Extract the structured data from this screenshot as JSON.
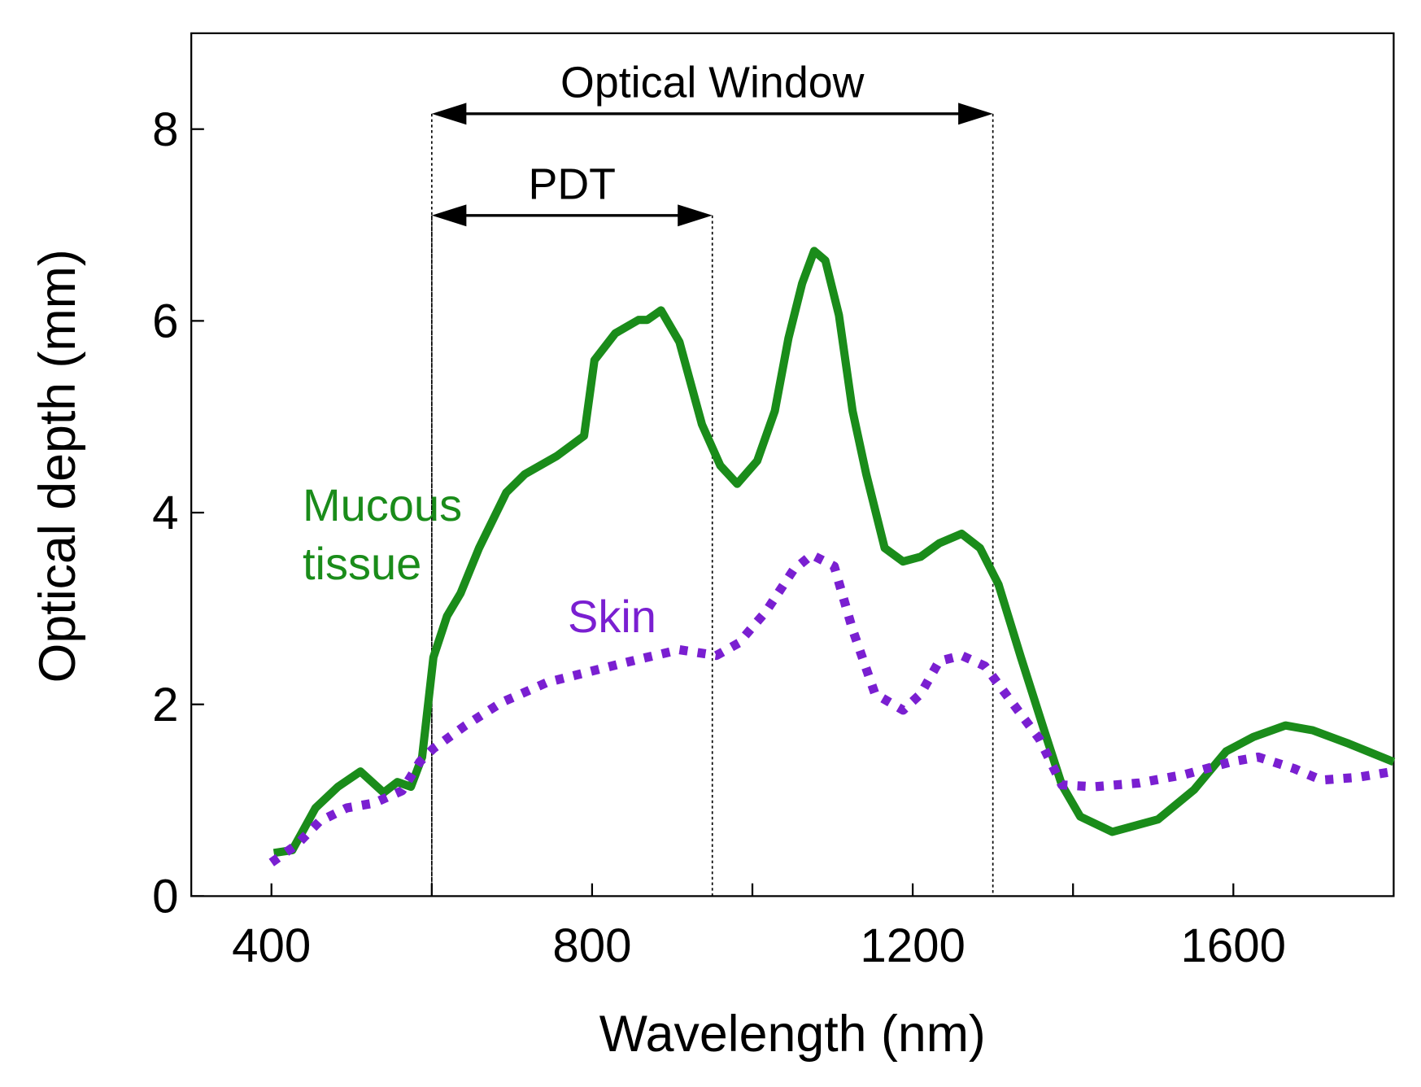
{
  "chart_data": {
    "type": "line",
    "x_label": "Wavelength (nm)",
    "y_label": "Optical depth (mm)",
    "xlim": [
      300,
      1800
    ],
    "ylim": [
      0,
      9
    ],
    "xticks": [
      400,
      800,
      1200,
      1600
    ],
    "xminor_ticks": [
      600,
      1000,
      1400
    ],
    "yticks": [
      0,
      2,
      4,
      6,
      8
    ],
    "annotations": [
      {
        "text": "Optical Window",
        "x_start": 600,
        "x_end": 1300,
        "y": 8.16
      },
      {
        "text": "PDT",
        "x_start": 600,
        "x_end": 950,
        "y": 7.1
      }
    ],
    "series": [
      {
        "name": "Mucous tissue",
        "color": "#1a8c1a",
        "style": "solid",
        "x": [
          403,
          426,
          455,
          483,
          511,
          540,
          557,
          574,
          588,
          602,
          619,
          636,
          659,
          693,
          716,
          756,
          790,
          803,
          829,
          858,
          869,
          886,
          909,
          937,
          960,
          981,
          1006,
          1028,
          1045,
          1062,
          1077,
          1091,
          1108,
          1125,
          1142,
          1165,
          1188,
          1210,
          1233,
          1261,
          1284,
          1307,
          1335,
          1364,
          1386,
          1409,
          1449,
          1506,
          1551,
          1591,
          1625,
          1665,
          1699,
          1744,
          1800
        ],
        "values": [
          0.45,
          0.48,
          0.92,
          1.14,
          1.3,
          1.08,
          1.19,
          1.14,
          1.45,
          2.49,
          2.92,
          3.16,
          3.63,
          4.21,
          4.4,
          4.59,
          4.8,
          5.59,
          5.87,
          6.01,
          6.01,
          6.11,
          5.78,
          4.92,
          4.49,
          4.3,
          4.54,
          5.06,
          5.82,
          6.39,
          6.73,
          6.63,
          6.06,
          5.06,
          4.4,
          3.63,
          3.49,
          3.54,
          3.68,
          3.78,
          3.63,
          3.25,
          2.49,
          1.73,
          1.16,
          0.83,
          0.67,
          0.8,
          1.11,
          1.51,
          1.66,
          1.78,
          1.73,
          1.59,
          1.4
        ]
      },
      {
        "name": "Skin",
        "color": "#7a1fd1",
        "style": "dotted",
        "x": [
          400,
          432,
          460,
          494,
          528,
          563,
          585,
          602,
          642,
          687,
          744,
          801,
          858,
          909,
          955,
          983,
          1017,
          1051,
          1074,
          1102,
          1125,
          1153,
          1188,
          1210,
          1233,
          1261,
          1290,
          1324,
          1358,
          1386,
          1426,
          1483,
          1540,
          1597,
          1631,
          1676,
          1710,
          1756,
          1800
        ],
        "values": [
          0.35,
          0.54,
          0.78,
          0.92,
          0.97,
          1.1,
          1.4,
          1.54,
          1.78,
          2.02,
          2.23,
          2.35,
          2.47,
          2.57,
          2.51,
          2.64,
          2.97,
          3.4,
          3.56,
          3.44,
          2.78,
          2.11,
          1.94,
          2.11,
          2.45,
          2.51,
          2.4,
          2.02,
          1.64,
          1.16,
          1.14,
          1.18,
          1.27,
          1.4,
          1.45,
          1.33,
          1.21,
          1.24,
          1.3
        ]
      }
    ]
  }
}
